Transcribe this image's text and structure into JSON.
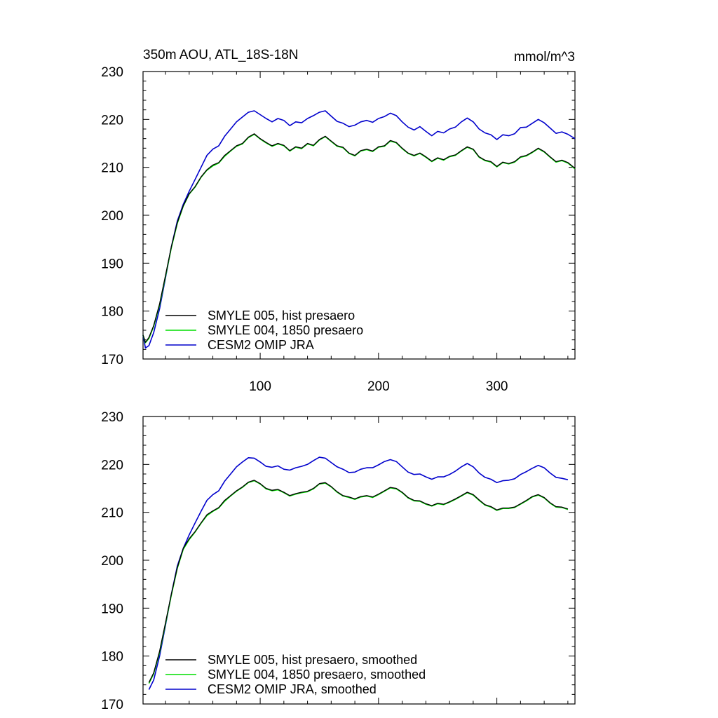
{
  "colors": {
    "smyle005": "#000000",
    "smyle004": "#00dd00",
    "omip": "#0000cc",
    "frame": "#000000",
    "background": "#ffffff"
  },
  "chart_data": [
    {
      "type": "line",
      "title": "350m AOU, ATL_18S-18N",
      "units": "mmol/m^3",
      "xlim": [
        1,
        366
      ],
      "ylim": [
        170,
        230
      ],
      "x_ticks": [
        100,
        200,
        300
      ],
      "x_tick_labels": [
        "100",
        "200",
        "300"
      ],
      "y_ticks": [
        170,
        180,
        190,
        200,
        210,
        220,
        230
      ],
      "y_tick_labels": [
        "170",
        "180",
        "190",
        "200",
        "210",
        "220",
        "230"
      ],
      "legend_placement": "bottom-left",
      "grid": false,
      "series": [
        {
          "name": "SMYLE 005, hist presaero",
          "color_key": "smyle005",
          "x": [
            1,
            3,
            6,
            10,
            15,
            20,
            25,
            30,
            35,
            40,
            45,
            50,
            55,
            60,
            65,
            70,
            75,
            80,
            85,
            90,
            95,
            100,
            105,
            110,
            115,
            120,
            125,
            130,
            135,
            140,
            145,
            150,
            155,
            160,
            165,
            170,
            175,
            180,
            185,
            190,
            195,
            200,
            205,
            210,
            215,
            220,
            225,
            230,
            235,
            240,
            245,
            250,
            255,
            260,
            265,
            270,
            275,
            280,
            285,
            290,
            295,
            300,
            305,
            310,
            315,
            320,
            325,
            330,
            335,
            340,
            345,
            350,
            355,
            360,
            366
          ],
          "y": [
            175.0,
            173.5,
            174.5,
            177.0,
            181.5,
            187.5,
            193.5,
            198.5,
            202.0,
            204.5,
            206.0,
            208.0,
            209.5,
            210.5,
            211.0,
            212.5,
            213.5,
            214.5,
            215.0,
            216.3,
            217.0,
            216.0,
            215.2,
            214.5,
            215.0,
            214.6,
            213.5,
            214.3,
            214.0,
            215.0,
            214.6,
            215.8,
            216.5,
            215.5,
            214.5,
            214.2,
            213.0,
            212.5,
            213.5,
            213.8,
            213.4,
            214.3,
            214.5,
            215.6,
            215.2,
            214.0,
            213.0,
            212.5,
            213.0,
            212.2,
            211.3,
            212.0,
            211.6,
            212.3,
            212.6,
            213.5,
            214.3,
            213.8,
            212.2,
            211.5,
            211.2,
            210.2,
            211.1,
            210.8,
            211.2,
            212.2,
            212.5,
            213.2,
            214.0,
            213.3,
            212.2,
            211.2,
            211.5,
            211.0,
            209.8
          ]
        },
        {
          "name": "SMYLE 004, 1850 presaero",
          "color_key": "smyle004",
          "x": [
            1,
            3,
            6,
            10,
            15,
            20,
            25,
            30,
            35,
            40,
            45,
            50,
            55,
            60,
            65,
            70,
            75,
            80,
            85,
            90,
            95,
            100,
            105,
            110,
            115,
            120,
            125,
            130,
            135,
            140,
            145,
            150,
            155,
            160,
            165,
            170,
            175,
            180,
            185,
            190,
            195,
            200,
            205,
            210,
            215,
            220,
            225,
            230,
            235,
            240,
            245,
            250,
            255,
            260,
            265,
            270,
            275,
            280,
            285,
            290,
            295,
            300,
            305,
            310,
            315,
            320,
            325,
            330,
            335,
            340,
            345,
            350,
            355,
            360,
            366
          ],
          "y": [
            175.0,
            173.4,
            174.3,
            176.8,
            181.3,
            187.3,
            193.3,
            198.3,
            201.9,
            204.4,
            205.9,
            207.9,
            209.4,
            210.3,
            210.9,
            212.3,
            213.4,
            214.4,
            214.9,
            216.2,
            216.9,
            215.9,
            215.1,
            214.4,
            214.9,
            214.5,
            213.4,
            214.2,
            213.9,
            214.9,
            214.5,
            215.7,
            216.4,
            215.4,
            214.4,
            214.1,
            212.9,
            212.4,
            213.4,
            213.7,
            213.3,
            214.2,
            214.4,
            215.5,
            215.1,
            213.9,
            212.9,
            212.4,
            212.9,
            212.1,
            211.2,
            211.9,
            211.5,
            212.2,
            212.5,
            213.4,
            214.2,
            213.7,
            212.1,
            211.4,
            211.1,
            210.1,
            211.0,
            210.7,
            211.1,
            212.1,
            212.4,
            213.1,
            213.9,
            213.2,
            212.1,
            211.1,
            211.4,
            210.9,
            209.7
          ]
        },
        {
          "name": "CESM2 OMIP JRA",
          "color_key": "omip",
          "x": [
            1,
            3,
            6,
            10,
            15,
            20,
            25,
            30,
            35,
            40,
            45,
            50,
            55,
            60,
            65,
            70,
            75,
            80,
            85,
            90,
            95,
            100,
            105,
            110,
            115,
            120,
            125,
            130,
            135,
            140,
            145,
            150,
            155,
            160,
            165,
            170,
            175,
            180,
            185,
            190,
            195,
            200,
            205,
            210,
            215,
            220,
            225,
            230,
            235,
            240,
            245,
            250,
            255,
            260,
            265,
            270,
            275,
            280,
            285,
            290,
            295,
            300,
            305,
            310,
            315,
            320,
            325,
            330,
            335,
            340,
            345,
            350,
            355,
            360,
            366
          ],
          "y": [
            175.0,
            172.3,
            172.8,
            175.5,
            180.5,
            187.0,
            193.5,
            198.8,
            202.3,
            205.0,
            207.5,
            210.0,
            212.5,
            213.8,
            214.5,
            216.5,
            218.0,
            219.5,
            220.5,
            221.5,
            221.8,
            221.0,
            220.2,
            219.5,
            220.2,
            219.8,
            218.7,
            219.5,
            219.3,
            220.2,
            220.8,
            221.5,
            221.8,
            220.7,
            219.6,
            219.2,
            218.5,
            218.8,
            219.5,
            219.8,
            219.4,
            220.2,
            220.6,
            221.3,
            220.8,
            219.5,
            218.4,
            217.8,
            218.5,
            217.5,
            216.6,
            217.5,
            217.2,
            218.0,
            218.4,
            219.5,
            220.3,
            219.5,
            218.0,
            217.2,
            216.8,
            215.8,
            216.8,
            216.6,
            217.0,
            218.3,
            218.4,
            219.2,
            220.0,
            219.3,
            218.2,
            217.1,
            217.4,
            216.9,
            216.0
          ]
        }
      ]
    },
    {
      "type": "line",
      "xlim": [
        1,
        366
      ],
      "ylim": [
        170,
        230
      ],
      "x_ticks": [
        100,
        200,
        300
      ],
      "y_ticks": [
        170,
        180,
        190,
        200,
        210,
        220,
        230
      ],
      "y_tick_labels": [
        "170",
        "180",
        "190",
        "200",
        "210",
        "220",
        "230"
      ],
      "legend_placement": "bottom-left",
      "grid": false,
      "series": [
        {
          "name": "SMYLE 005, hist presaero, smoothed",
          "color_key": "smyle005",
          "x": [
            6,
            10,
            15,
            20,
            25,
            30,
            35,
            40,
            45,
            50,
            55,
            60,
            65,
            70,
            75,
            80,
            85,
            90,
            95,
            100,
            105,
            110,
            115,
            120,
            125,
            130,
            135,
            140,
            145,
            150,
            155,
            160,
            165,
            170,
            175,
            180,
            185,
            190,
            195,
            200,
            205,
            210,
            215,
            220,
            225,
            230,
            235,
            240,
            245,
            250,
            255,
            260,
            265,
            270,
            275,
            280,
            285,
            290,
            295,
            300,
            305,
            310,
            315,
            320,
            325,
            330,
            335,
            340,
            345,
            350,
            355,
            360
          ],
          "y": [
            174.5,
            176.5,
            181.0,
            187.0,
            193.0,
            198.5,
            202.5,
            204.5,
            206.0,
            207.8,
            209.5,
            210.3,
            211.0,
            212.5,
            213.5,
            214.5,
            215.3,
            216.3,
            216.7,
            216.0,
            215.0,
            214.6,
            214.8,
            214.2,
            213.5,
            213.9,
            214.2,
            214.4,
            215.0,
            216.0,
            216.2,
            215.4,
            214.3,
            213.5,
            213.2,
            212.8,
            213.3,
            213.5,
            213.2,
            213.8,
            214.5,
            215.2,
            215.0,
            214.2,
            213.1,
            212.5,
            212.4,
            211.8,
            211.4,
            211.9,
            211.7,
            212.2,
            212.8,
            213.5,
            214.2,
            213.7,
            212.6,
            211.6,
            211.2,
            210.5,
            210.9,
            210.9,
            211.1,
            211.8,
            212.5,
            213.3,
            213.7,
            213.1,
            212.0,
            211.2,
            211.1,
            210.7
          ]
        },
        {
          "name": "SMYLE 004, 1850 presaero, smoothed",
          "color_key": "smyle004",
          "x": [
            6,
            10,
            15,
            20,
            25,
            30,
            35,
            40,
            45,
            50,
            55,
            60,
            65,
            70,
            75,
            80,
            85,
            90,
            95,
            100,
            105,
            110,
            115,
            120,
            125,
            130,
            135,
            140,
            145,
            150,
            155,
            160,
            165,
            170,
            175,
            180,
            185,
            190,
            195,
            200,
            205,
            210,
            215,
            220,
            225,
            230,
            235,
            240,
            245,
            250,
            255,
            260,
            265,
            270,
            275,
            280,
            285,
            290,
            295,
            300,
            305,
            310,
            315,
            320,
            325,
            330,
            335,
            340,
            345,
            350,
            355,
            360
          ],
          "y": [
            174.3,
            176.3,
            180.8,
            186.8,
            192.8,
            198.3,
            202.3,
            204.3,
            205.9,
            207.7,
            209.3,
            210.2,
            210.9,
            212.3,
            213.4,
            214.4,
            215.2,
            216.2,
            216.6,
            215.9,
            214.9,
            214.5,
            214.7,
            214.1,
            213.4,
            213.8,
            214.1,
            214.3,
            214.9,
            215.9,
            216.1,
            215.3,
            214.2,
            213.4,
            213.1,
            212.7,
            213.2,
            213.4,
            213.1,
            213.7,
            214.4,
            215.1,
            214.9,
            214.1,
            213.0,
            212.4,
            212.3,
            211.7,
            211.3,
            211.8,
            211.6,
            212.1,
            212.7,
            213.4,
            214.1,
            213.6,
            212.5,
            211.5,
            211.1,
            210.4,
            210.8,
            210.8,
            211.0,
            211.7,
            212.4,
            213.2,
            213.6,
            213.0,
            211.9,
            211.1,
            211.0,
            210.6
          ]
        },
        {
          "name": "CESM2 OMIP JRA, smoothed",
          "color_key": "omip",
          "x": [
            6,
            10,
            15,
            20,
            25,
            30,
            35,
            40,
            45,
            50,
            55,
            60,
            65,
            70,
            75,
            80,
            85,
            90,
            95,
            100,
            105,
            110,
            115,
            120,
            125,
            130,
            135,
            140,
            145,
            150,
            155,
            160,
            165,
            170,
            175,
            180,
            185,
            190,
            195,
            200,
            205,
            210,
            215,
            220,
            225,
            230,
            235,
            240,
            245,
            250,
            255,
            260,
            265,
            270,
            275,
            280,
            285,
            290,
            295,
            300,
            305,
            310,
            315,
            320,
            325,
            330,
            335,
            340,
            345,
            350,
            355,
            360
          ],
          "y": [
            173.0,
            175.0,
            180.0,
            186.5,
            193.0,
            198.8,
            202.5,
            205.3,
            207.8,
            210.2,
            212.5,
            213.7,
            214.5,
            216.5,
            218.0,
            219.5,
            220.5,
            221.4,
            221.3,
            220.5,
            219.6,
            219.4,
            219.7,
            219.0,
            218.8,
            219.3,
            219.6,
            220.0,
            220.8,
            221.5,
            221.3,
            220.4,
            219.5,
            219.0,
            218.3,
            218.4,
            219.0,
            219.3,
            219.3,
            219.9,
            220.6,
            221.0,
            220.6,
            219.5,
            218.4,
            217.9,
            218.0,
            217.4,
            216.9,
            217.4,
            217.4,
            217.9,
            218.6,
            219.5,
            220.2,
            219.5,
            218.2,
            217.3,
            216.9,
            216.2,
            216.6,
            216.7,
            217.0,
            217.9,
            218.5,
            219.2,
            219.8,
            219.3,
            218.2,
            217.3,
            217.1,
            216.8
          ]
        }
      ]
    }
  ]
}
